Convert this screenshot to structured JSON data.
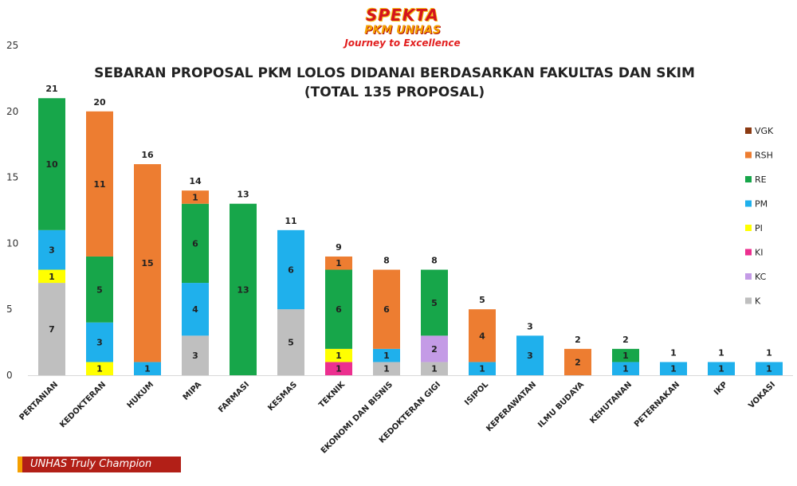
{
  "logo": {
    "line1": "SPEKTA",
    "line2": "PKM UNHAS",
    "line3": "Journey to Excellence"
  },
  "footer_text": "UNHAS Truly Champion",
  "chart_data": {
    "type": "bar",
    "stacked": true,
    "title": "SEBARAN PROPOSAL PKM LOLOS DIDANAI BERDASARKAN FAKULTAS DAN SKIM",
    "subtitle": "(TOTAL 135 PROPOSAL)",
    "xlabel": "",
    "ylabel": "",
    "ylim": [
      0,
      25
    ],
    "yticks": [
      0,
      5,
      10,
      15,
      20,
      25
    ],
    "grid": false,
    "legend_position": "right",
    "categories": [
      "PERTANIAN",
      "KEDOKTERAN",
      "HUKUM",
      "MIPA",
      "FARMASI",
      "KESMAS",
      "TEKNIK",
      "EKONOMI DAN BISNIS",
      "KEDOKTERAN GIGI",
      "ISIPOL",
      "KEPERAWATAN",
      "ILMU BUDAYA",
      "KEHUTANAN",
      "PETERNAKAN",
      "IKP",
      "VOKASI"
    ],
    "totals": [
      21,
      20,
      16,
      14,
      13,
      11,
      9,
      8,
      8,
      5,
      3,
      2,
      2,
      1,
      1,
      1
    ],
    "series": [
      {
        "name": "K",
        "color": "#bfbfbf",
        "values": [
          7,
          0,
          0,
          3,
          0,
          5,
          0,
          1,
          1,
          0,
          0,
          0,
          0,
          0,
          0,
          0
        ]
      },
      {
        "name": "KC",
        "color": "#c49be6",
        "values": [
          0,
          0,
          0,
          0,
          0,
          0,
          0,
          0,
          2,
          0,
          0,
          0,
          0,
          0,
          0,
          0
        ]
      },
      {
        "name": "KI",
        "color": "#ec2f8f",
        "values": [
          0,
          0,
          0,
          0,
          0,
          0,
          1,
          0,
          0,
          0,
          0,
          0,
          0,
          0,
          0,
          0
        ]
      },
      {
        "name": "PI",
        "color": "#ffff00",
        "values": [
          1,
          1,
          0,
          0,
          0,
          0,
          1,
          0,
          0,
          0,
          0,
          0,
          0,
          0,
          0,
          0
        ]
      },
      {
        "name": "PM",
        "color": "#1fb0ec",
        "values": [
          3,
          3,
          1,
          4,
          0,
          6,
          0,
          1,
          0,
          1,
          3,
          0,
          1,
          1,
          1,
          1
        ]
      },
      {
        "name": "RE",
        "color": "#17a64a",
        "values": [
          10,
          5,
          0,
          6,
          13,
          0,
          6,
          0,
          5,
          0,
          0,
          0,
          1,
          0,
          0,
          0
        ]
      },
      {
        "name": "RSH",
        "color": "#ed7d31",
        "values": [
          0,
          11,
          15,
          1,
          0,
          0,
          1,
          6,
          0,
          4,
          0,
          2,
          0,
          0,
          0,
          0
        ]
      },
      {
        "name": "VGK",
        "color": "#8b3a12",
        "values": [
          0,
          0,
          0,
          0,
          0,
          0,
          0,
          0,
          0,
          0,
          0,
          0,
          0,
          0,
          0,
          0
        ]
      }
    ],
    "legend_order": [
      "VGK",
      "RSH",
      "RE",
      "PM",
      "PI",
      "KI",
      "KC",
      "K"
    ]
  }
}
